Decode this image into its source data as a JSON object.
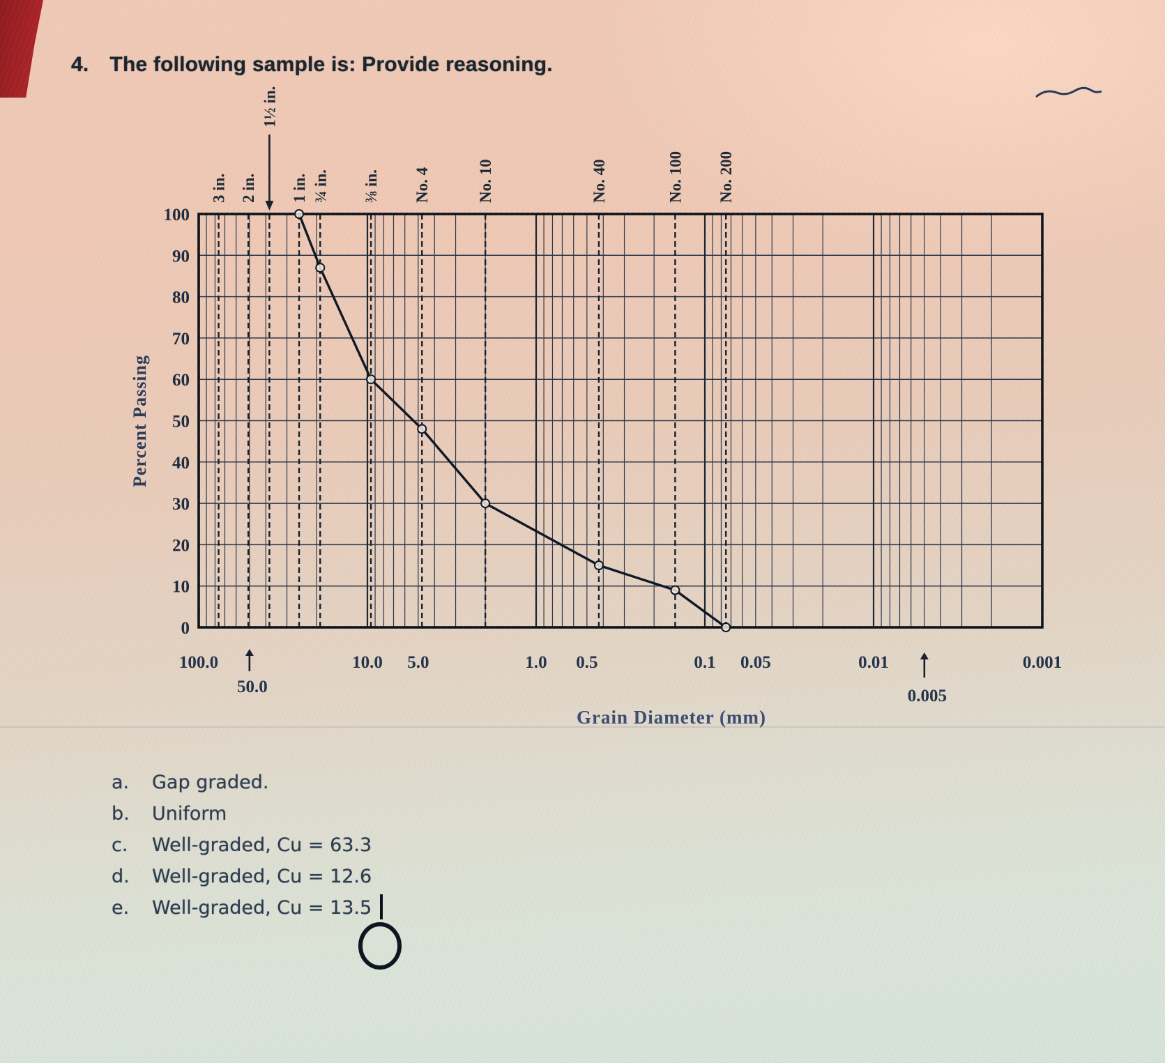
{
  "page": {
    "question_number": "4.",
    "question_text": "The following sample is: Provide reasoning.",
    "options": [
      {
        "letter": "a.",
        "text": "Gap graded."
      },
      {
        "letter": "b.",
        "text": "Uniform"
      },
      {
        "letter": "c.",
        "text": "Well-graded, Cu = 63.3"
      },
      {
        "letter": "d.",
        "text": "Well-graded, Cu = 12.6"
      },
      {
        "letter": "e.",
        "text": "Well-graded, Cu = 13.5"
      }
    ]
  },
  "chart_data": {
    "type": "line",
    "title": "",
    "xlabel": "Grain Diameter (mm)",
    "ylabel": "Percent Passing",
    "x_scale": "log",
    "xlim": [
      100,
      0.001
    ],
    "ylim": [
      0,
      100
    ],
    "grid": true,
    "y_ticks": [
      100,
      90,
      80,
      70,
      60,
      50,
      40,
      30,
      20,
      10,
      0
    ],
    "x_ticks_row1": [
      {
        "label": "100.0",
        "value": 100
      },
      {
        "label": "10.0",
        "value": 10
      },
      {
        "label": "5.0",
        "value": 5
      },
      {
        "label": "1.0",
        "value": 1
      },
      {
        "label": "0.5",
        "value": 0.5
      },
      {
        "label": "0.1",
        "value": 0.1
      },
      {
        "label": "0.05",
        "value": 0.05
      },
      {
        "label": "0.01",
        "value": 0.01
      },
      {
        "label": "0.001",
        "value": 0.001
      }
    ],
    "x_ticks_row2": [
      {
        "label": "50.0",
        "value": 50
      },
      {
        "label": "0.005",
        "value": 0.005
      }
    ],
    "sieve_labels": [
      {
        "label": "3 in.",
        "mm": 76.2
      },
      {
        "label": "2 in.",
        "mm": 50.8
      },
      {
        "label": "1½ in.",
        "mm": 38.1,
        "arrow": true
      },
      {
        "label": "1 in.",
        "mm": 25.4
      },
      {
        "label": "¾ in.",
        "mm": 19.05
      },
      {
        "label": "⅜ in.",
        "mm": 9.53
      },
      {
        "label": "No. 4",
        "mm": 4.75
      },
      {
        "label": "No. 10",
        "mm": 2.0
      },
      {
        "label": "No. 40",
        "mm": 0.425
      },
      {
        "label": "No. 100",
        "mm": 0.15
      },
      {
        "label": "No. 200",
        "mm": 0.075
      }
    ],
    "series": [
      {
        "name": "grain-size-distribution",
        "points": [
          [
            25.4,
            100
          ],
          [
            19.05,
            87
          ],
          [
            9.53,
            60
          ],
          [
            4.75,
            48
          ],
          [
            2.0,
            30
          ],
          [
            0.425,
            15
          ],
          [
            0.15,
            9
          ],
          [
            0.075,
            0
          ]
        ]
      }
    ]
  }
}
